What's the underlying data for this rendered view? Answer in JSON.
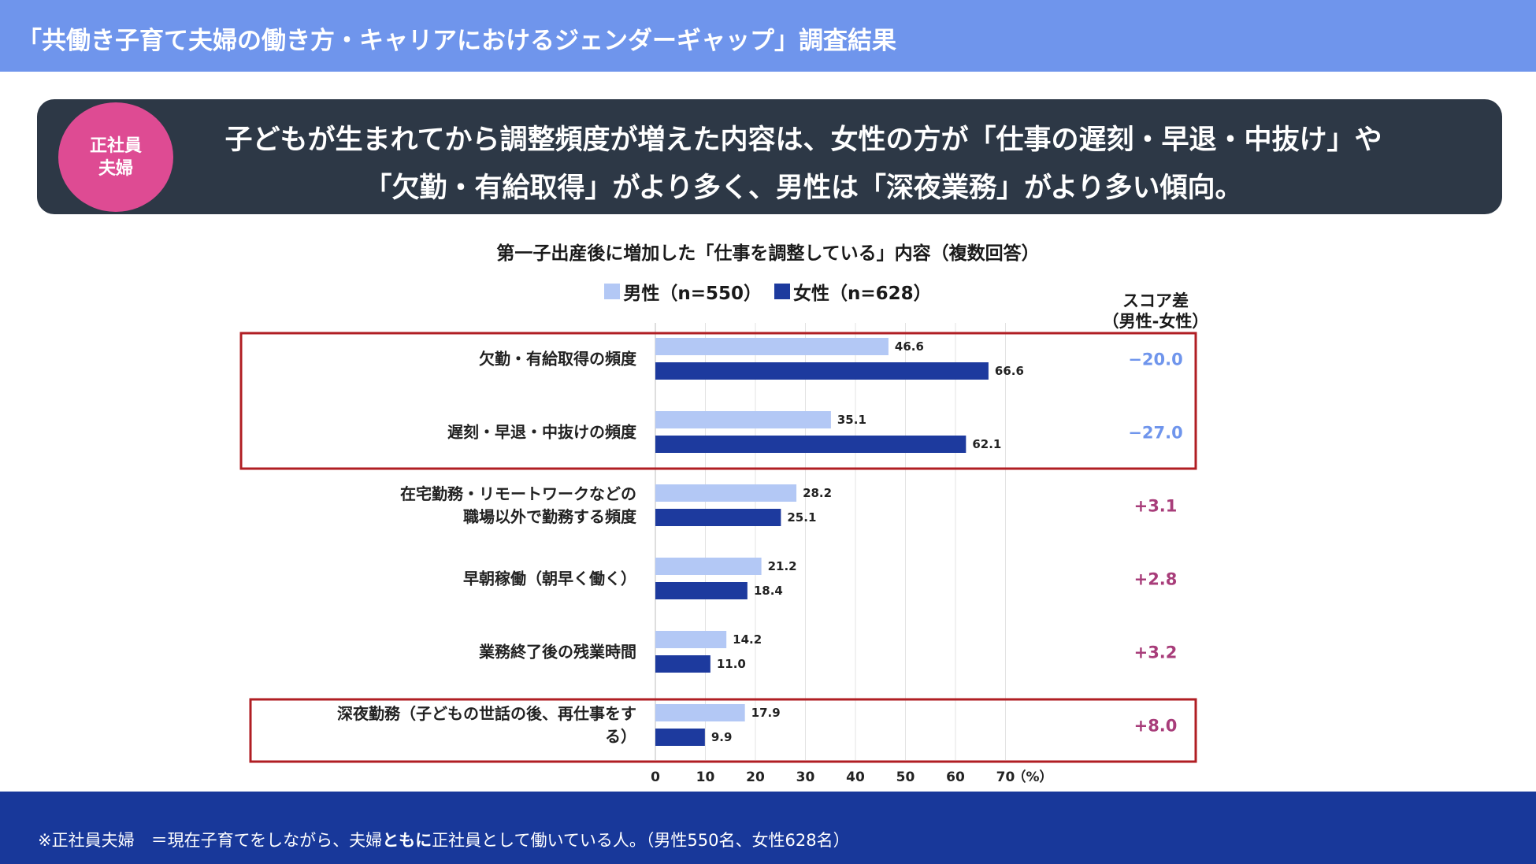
{
  "header": {
    "title": "「共働き子育て夫婦の働き方・キャリアにおけるジェンダーギャップ」調査結果"
  },
  "banner": {
    "badge_line1": "正社員",
    "badge_line2": "夫婦",
    "headline_line1": "子どもが生まれてから調整頻度が増えた内容は、女性の方が「仕事の遅刻・早退・中抜け」や",
    "headline_line2": "「欠勤・有給取得」がより多く、男性は「深夜業務」がより多い傾向。"
  },
  "score_header": {
    "line1": "スコア差",
    "line2": "（男性-女性）"
  },
  "footer": {
    "note_prefix": "※正社員夫婦　＝現在子育てをしながら、夫婦",
    "note_bold": "ともに",
    "note_suffix": "正社員として働いている人。（男性550名、女性628名）"
  },
  "colors": {
    "male": "#b3c8f5",
    "female": "#1d3a9e",
    "negative_diff": "#6f95ec",
    "positive_diff": "#a83d7a",
    "highlight_box": "#b01e23"
  },
  "chart_data": {
    "type": "bar",
    "orientation": "horizontal",
    "title": "第一子出産後に増加した「仕事を調整している」内容（複数回答）",
    "unit_label": "（%）",
    "xlim": [
      0,
      70
    ],
    "xticks": [
      0,
      10,
      20,
      30,
      40,
      50,
      60,
      70
    ],
    "grid": true,
    "categories": [
      [
        "欠勤・有給取得の頻度"
      ],
      [
        "遅刻・早退・中抜けの頻度"
      ],
      [
        "在宅勤務・リモートワークなどの",
        "職場以外で勤務する頻度"
      ],
      [
        "早朝稼働（朝早く働く）"
      ],
      [
        "業務終了後の残業時間"
      ],
      [
        "深夜勤務（子どもの世話の後、再仕事をす",
        "る）"
      ]
    ],
    "series": [
      {
        "name": "男性（n=550）",
        "values": [
          46.6,
          35.1,
          28.2,
          21.2,
          14.2,
          17.9
        ]
      },
      {
        "name": "女性（n=628）",
        "values": [
          66.6,
          62.1,
          25.1,
          18.4,
          11.0,
          9.9
        ]
      }
    ],
    "score_diff": [
      "−20.0",
      "−27.0",
      "+3.1",
      "+2.8",
      "+3.2",
      "+8.0"
    ],
    "highlighted_groups": [
      [
        0,
        1
      ],
      [
        5
      ]
    ]
  }
}
